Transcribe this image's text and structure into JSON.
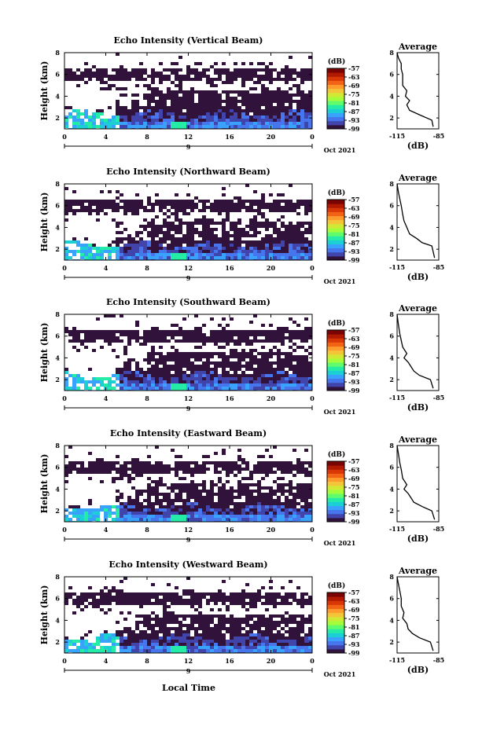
{
  "figure": {
    "x_axis_title": "Local Time",
    "date_label": "Oct 2021",
    "day_label": "9",
    "colorbar_unit": "(dB)",
    "colorbar_ticks": [
      "-57",
      "-63",
      "-69",
      "-75",
      "-81",
      "-87",
      "-93",
      "-99"
    ],
    "colormap": [
      "#30123b",
      "#4145ab",
      "#4675ed",
      "#39a2fc",
      "#1bcfd4",
      "#24eca6",
      "#61fc6c",
      "#a4fc3b",
      "#d1e834",
      "#f3c63a",
      "#fe9b2d",
      "#f36315",
      "#d93806",
      "#b11901",
      "#7a0403"
    ]
  },
  "chart_data": [
    {
      "type": "heatmap",
      "title": "Echo Intensity (Vertical Beam)",
      "ylabel": "Height (km)",
      "xlabel": "Local Time",
      "x_ticks": [
        "0",
        "4",
        "8",
        "12",
        "16",
        "20",
        "0"
      ],
      "y_ticks": [
        "2",
        "4",
        "6",
        "8"
      ],
      "xlim": [
        0,
        24
      ],
      "ylim": [
        1,
        8
      ],
      "colorbar": {
        "unit": "(dB)",
        "range": [
          -99,
          -57
        ]
      },
      "profile": {
        "title": "Average",
        "xlabel": "(dB)",
        "x_ticks": [
          "-115",
          "-85"
        ],
        "y_ticks": [
          "2",
          "4",
          "6",
          "8"
        ],
        "xlim": [
          -115,
          -85
        ],
        "ylim": [
          1,
          8
        ],
        "points": [
          [
            -89,
            1.2
          ],
          [
            -90,
            1.8
          ],
          [
            -99,
            2.3
          ],
          [
            -106,
            2.7
          ],
          [
            -108,
            3.2
          ],
          [
            -106,
            3.6
          ],
          [
            -109,
            4.0
          ],
          [
            -108,
            4.5
          ],
          [
            -111,
            5.0
          ],
          [
            -111,
            5.5
          ],
          [
            -111,
            6.0
          ],
          [
            -112,
            6.5
          ],
          [
            -112,
            7.0
          ],
          [
            -114,
            7.5
          ],
          [
            -115,
            8.0
          ]
        ]
      }
    },
    {
      "type": "heatmap",
      "title": "Echo Intensity (Northward Beam)",
      "ylabel": "Height (km)",
      "xlabel": "Local Time",
      "x_ticks": [
        "0",
        "4",
        "8",
        "12",
        "16",
        "20",
        "0"
      ],
      "y_ticks": [
        "2",
        "4",
        "6",
        "8"
      ],
      "xlim": [
        0,
        24
      ],
      "ylim": [
        1,
        8
      ],
      "colorbar": {
        "unit": "(dB)",
        "range": [
          -99,
          -57
        ]
      },
      "profile": {
        "title": "Average",
        "xlabel": "(dB)",
        "x_ticks": [
          "-115",
          "-85"
        ],
        "y_ticks": [
          "2",
          "4",
          "6",
          "8"
        ],
        "xlim": [
          -115,
          -85
        ],
        "ylim": [
          1,
          8
        ],
        "points": [
          [
            -88,
            1.2
          ],
          [
            -90,
            2.3
          ],
          [
            -97,
            2.6
          ],
          [
            -101,
            3.0
          ],
          [
            -106,
            3.4
          ],
          [
            -108,
            4.0
          ],
          [
            -110,
            4.6
          ],
          [
            -111,
            5.2
          ],
          [
            -112,
            6.0
          ],
          [
            -113,
            6.6
          ],
          [
            -114,
            7.2
          ],
          [
            -115,
            8.0
          ]
        ]
      }
    },
    {
      "type": "heatmap",
      "title": "Echo Intensity (Southward Beam)",
      "ylabel": "Height (km)",
      "xlabel": "Local Time",
      "x_ticks": [
        "0",
        "4",
        "8",
        "12",
        "16",
        "20",
        "0"
      ],
      "y_ticks": [
        "2",
        "4",
        "6",
        "8"
      ],
      "xlim": [
        0,
        24
      ],
      "ylim": [
        1,
        8
      ],
      "colorbar": {
        "unit": "(dB)",
        "range": [
          -99,
          -57
        ]
      },
      "profile": {
        "title": "Average",
        "xlabel": "(dB)",
        "x_ticks": [
          "-115",
          "-85"
        ],
        "y_ticks": [
          "2",
          "4",
          "6",
          "8"
        ],
        "xlim": [
          -115,
          -85
        ],
        "ylim": [
          1,
          8
        ],
        "points": [
          [
            -89,
            1.2
          ],
          [
            -91,
            2.0
          ],
          [
            -99,
            2.4
          ],
          [
            -103,
            2.8
          ],
          [
            -105,
            3.2
          ],
          [
            -107,
            3.6
          ],
          [
            -110,
            4.0
          ],
          [
            -108,
            4.4
          ],
          [
            -111,
            5.0
          ],
          [
            -112,
            5.6
          ],
          [
            -113,
            6.2
          ],
          [
            -114,
            7.0
          ],
          [
            -115,
            8.0
          ]
        ]
      }
    },
    {
      "type": "heatmap",
      "title": "Echo Intensity (Eastward Beam)",
      "ylabel": "Height (km)",
      "xlabel": "Local Time",
      "x_ticks": [
        "0",
        "4",
        "8",
        "12",
        "16",
        "20",
        "0"
      ],
      "y_ticks": [
        "2",
        "4",
        "6",
        "8"
      ],
      "xlim": [
        0,
        24
      ],
      "ylim": [
        1,
        8
      ],
      "colorbar": {
        "unit": "(dB)",
        "range": [
          -99,
          -57
        ]
      },
      "profile": {
        "title": "Average",
        "xlabel": "(dB)",
        "x_ticks": [
          "-115",
          "-85"
        ],
        "y_ticks": [
          "2",
          "4",
          "6",
          "8"
        ],
        "xlim": [
          -115,
          -85
        ],
        "ylim": [
          1,
          8
        ],
        "points": [
          [
            -88,
            1.2
          ],
          [
            -90,
            2.0
          ],
          [
            -97,
            2.4
          ],
          [
            -103,
            2.8
          ],
          [
            -105,
            3.2
          ],
          [
            -107,
            3.6
          ],
          [
            -110,
            4.0
          ],
          [
            -108,
            4.4
          ],
          [
            -111,
            5.0
          ],
          [
            -112,
            5.8
          ],
          [
            -113,
            6.4
          ],
          [
            -114,
            7.2
          ],
          [
            -115,
            8.0
          ]
        ]
      }
    },
    {
      "type": "heatmap",
      "title": "Echo Intensity (Westward Beam)",
      "ylabel": "Height (km)",
      "xlabel": "Local Time",
      "x_ticks": [
        "0",
        "4",
        "8",
        "12",
        "16",
        "20",
        "0"
      ],
      "y_ticks": [
        "2",
        "4",
        "6",
        "8"
      ],
      "xlim": [
        0,
        24
      ],
      "ylim": [
        1,
        8
      ],
      "colorbar": {
        "unit": "(dB)",
        "range": [
          -99,
          -57
        ]
      },
      "profile": {
        "title": "Average",
        "xlabel": "(dB)",
        "x_ticks": [
          "-115",
          "-85"
        ],
        "y_ticks": [
          "2",
          "4",
          "6",
          "8"
        ],
        "xlim": [
          -115,
          -85
        ],
        "ylim": [
          1,
          8
        ],
        "points": [
          [
            -89,
            1.2
          ],
          [
            -91,
            2.0
          ],
          [
            -99,
            2.4
          ],
          [
            -104,
            2.8
          ],
          [
            -107,
            3.2
          ],
          [
            -108,
            3.7
          ],
          [
            -111,
            4.2
          ],
          [
            -110,
            4.7
          ],
          [
            -112,
            5.3
          ],
          [
            -112,
            6.0
          ],
          [
            -113,
            6.7
          ],
          [
            -114,
            7.3
          ],
          [
            -115,
            8.0
          ]
        ]
      }
    }
  ]
}
